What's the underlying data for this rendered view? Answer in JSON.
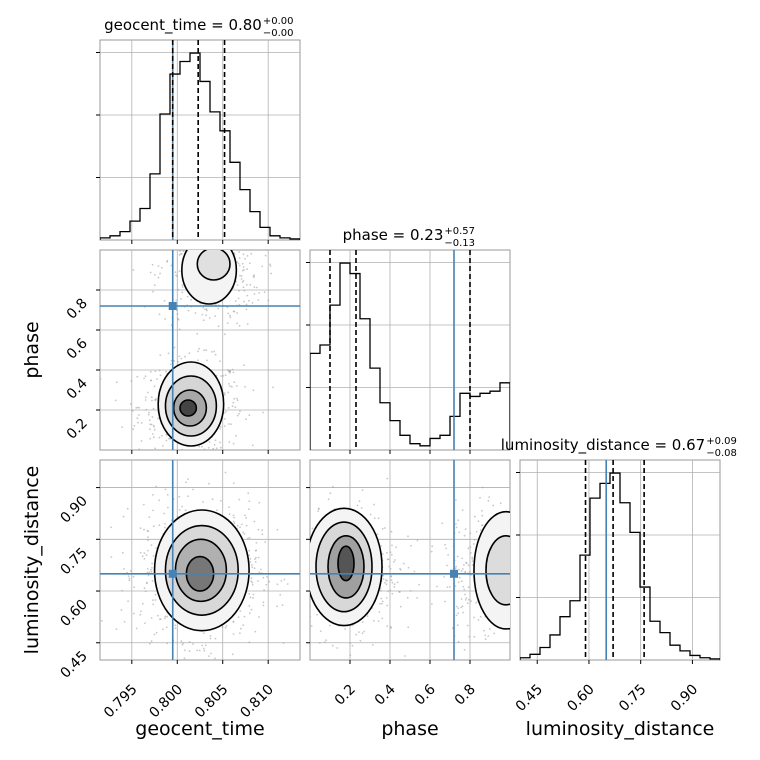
{
  "chart_data": {
    "type": "corner",
    "parameters": [
      "geocent_time",
      "phase",
      "luminosity_distance"
    ],
    "injection_color": "#4682b4",
    "titles": [
      {
        "text": "geocent_time = 0.80",
        "sup": "+0.00",
        "sub": "−0.00"
      },
      {
        "text": "phase = 0.23",
        "sup": "+0.57",
        "sub": "−0.13"
      },
      {
        "text": "luminosity_distance = 0.67",
        "sup": "+0.09",
        "sub": "−0.08"
      }
    ],
    "axes": {
      "geocent_time": {
        "range": [
          0.7915,
          0.8135
        ],
        "ticks": [
          0.795,
          0.8,
          0.805,
          0.81
        ],
        "tick_labels": [
          "0.795",
          "0.800",
          "0.805",
          "0.810"
        ]
      },
      "phase": {
        "range": [
          0.0,
          1.0
        ],
        "ticks": [
          0.2,
          0.4,
          0.6,
          0.8
        ],
        "tick_labels": [
          "0.2",
          "0.4",
          "0.6",
          "0.8"
        ]
      },
      "luminosity_distance": {
        "range": [
          0.4,
          0.98
        ],
        "ticks": [
          0.45,
          0.6,
          0.75,
          0.9
        ],
        "tick_labels": [
          "0.45",
          "0.60",
          "0.75",
          "0.90"
        ]
      }
    },
    "injection": {
      "geocent_time": 0.7995,
      "phase": 0.72,
      "luminosity_distance": 0.65
    },
    "quantiles": {
      "geocent_time": [
        0.7995,
        0.8023,
        0.8052
      ],
      "phase": [
        0.1,
        0.23,
        0.8
      ],
      "luminosity_distance": [
        0.59,
        0.67,
        0.76
      ]
    },
    "histograms": {
      "geocent_time": {
        "edges": [
          0.7915,
          0.7926,
          0.7937,
          0.7948,
          0.7959,
          0.797,
          0.7981,
          0.7992,
          0.8003,
          0.8014,
          0.8025,
          0.8036,
          0.8047,
          0.8058,
          0.8069,
          0.808,
          0.8091,
          0.8102,
          0.8113,
          0.8124,
          0.8135
        ],
        "counts": [
          2,
          4,
          8,
          18,
          30,
          63,
          120,
          158,
          170,
          178,
          151,
          122,
          104,
          74,
          48,
          27,
          12,
          4,
          2,
          1
        ]
      },
      "phase": {
        "edges": [
          0.0,
          0.05,
          0.1,
          0.15,
          0.2,
          0.25,
          0.3,
          0.35,
          0.4,
          0.45,
          0.5,
          0.55,
          0.6,
          0.65,
          0.7,
          0.75,
          0.8,
          0.85,
          0.9,
          0.95,
          1.0
        ],
        "counts": [
          92,
          100,
          138,
          178,
          168,
          125,
          78,
          45,
          28,
          14,
          6,
          4,
          11,
          14,
          32,
          54,
          51,
          54,
          56,
          64
        ]
      },
      "luminosity_distance": {
        "edges": [
          0.4,
          0.429,
          0.458,
          0.487,
          0.516,
          0.545,
          0.574,
          0.603,
          0.632,
          0.661,
          0.69,
          0.719,
          0.748,
          0.777,
          0.806,
          0.835,
          0.864,
          0.893,
          0.922,
          0.951,
          0.98
        ],
        "counts": [
          2,
          5,
          11,
          22,
          38,
          52,
          92,
          142,
          155,
          164,
          138,
          112,
          64,
          34,
          24,
          13,
          8,
          4,
          2,
          1
        ]
      }
    }
  }
}
